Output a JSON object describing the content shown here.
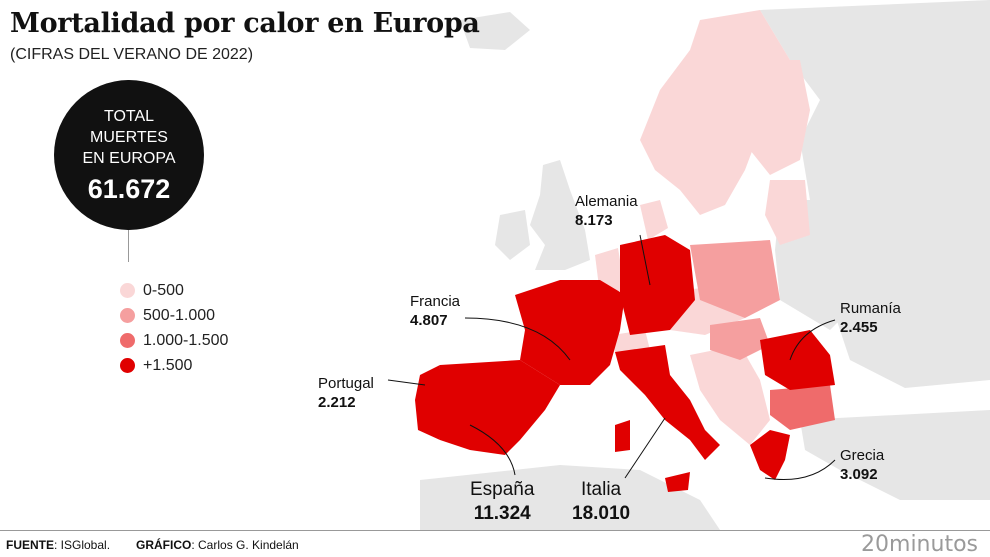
{
  "header": {
    "title": "Mortalidad por calor en Europa",
    "subtitle": "(CIFRAS DEL VERANO DE 2022)"
  },
  "total": {
    "label": "TOTAL\nMUERTES\nEN EUROPA",
    "value": "61.672"
  },
  "legend": [
    {
      "label": "0-500",
      "color": "#fad7d7"
    },
    {
      "label": "500-1.000",
      "color": "#f59f9f"
    },
    {
      "label": "1.000-1.500",
      "color": "#ef6b6b"
    },
    {
      "label": "+1.500",
      "color": "#e00000"
    }
  ],
  "labels": {
    "alemania": {
      "name": "Alemania",
      "value": "8.173"
    },
    "francia": {
      "name": "Francia",
      "value": "4.807"
    },
    "portugal": {
      "name": "Portugal",
      "value": "2.212"
    },
    "espana": {
      "name": "España",
      "value": "11.324"
    },
    "italia": {
      "name": "Italia",
      "value": "18.010"
    },
    "rumania": {
      "name": "Rumanía",
      "value": "2.455"
    },
    "grecia": {
      "name": "Grecia",
      "value": "3.092"
    }
  },
  "footer": {
    "source_label": "FUENTE",
    "source": ": ISGlobal.",
    "graphic_label": "GRÁFICO",
    "graphic": ": Carlos G. Kindelán",
    "brand": "20minutos"
  },
  "colors": {
    "land_other": "#e6e6e6",
    "sea": "#ffffff"
  }
}
